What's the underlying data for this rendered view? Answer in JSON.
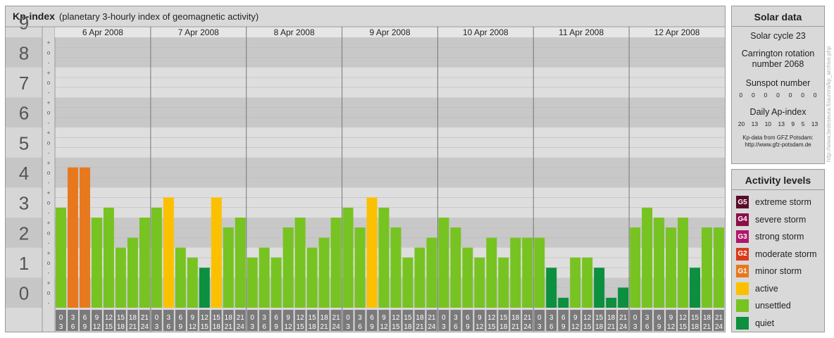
{
  "title": {
    "main": "Kp-index",
    "sub": "(planetary 3-hourly index of geomagnetic activity)"
  },
  "solar": {
    "title": "Solar data",
    "cycle": "Solar cycle 23",
    "carrington": "Carrington rotation number 2068",
    "sunspot_label": "Sunspot number",
    "sunspot": [
      "0",
      "0",
      "0",
      "0",
      "0",
      "0",
      "0"
    ],
    "ap_label": "Daily Ap-index",
    "ap": [
      "20",
      "13",
      "10",
      "13",
      "9",
      "5",
      "13"
    ],
    "source_line1": "Kp-data from GFZ Potsdam:",
    "source_line2": "http://www.gfz-potsdam.de"
  },
  "activity": {
    "title": "Activity levels",
    "items": [
      {
        "code": "G5",
        "label": "extreme storm",
        "color": "#5a0a2a"
      },
      {
        "code": "G4",
        "label": "severe storm",
        "color": "#8a0e4a"
      },
      {
        "code": "G3",
        "label": "strong storm",
        "color": "#b0166a"
      },
      {
        "code": "G2",
        "label": "moderate storm",
        "color": "#d93a1c"
      },
      {
        "code": "G1",
        "label": "minor storm",
        "color": "#e8781e"
      },
      {
        "code": "",
        "label": "active",
        "color": "#fbc100"
      },
      {
        "code": "",
        "label": "unsettled",
        "color": "#77c322"
      },
      {
        "code": "",
        "label": "quiet",
        "color": "#0c8f3e"
      }
    ]
  },
  "watermark": "http://www.tiedeseura.fi/aurora/kp_archive.php",
  "chart_data": {
    "type": "bar",
    "ylim": [
      0,
      9
    ],
    "yticks": [
      "0",
      "1",
      "2",
      "3",
      "4",
      "5",
      "6",
      "7",
      "8",
      "9"
    ],
    "minor_ticks": [
      "-",
      "o",
      "+"
    ],
    "days": [
      "6 Apr 2008",
      "7 Apr 2008",
      "8 Apr 2008",
      "9 Apr 2008",
      "10 Apr 2008",
      "11 Apr 2008",
      "12 Apr 2008"
    ],
    "interval_start": [
      "0",
      "3",
      "6",
      "9",
      "12",
      "15",
      "18",
      "21"
    ],
    "interval_end": [
      "3",
      "6",
      "9",
      "12",
      "15",
      "18",
      "21",
      "24"
    ],
    "values": [
      3.33,
      4.67,
      4.67,
      3.0,
      3.33,
      2.0,
      2.33,
      3.0,
      3.33,
      3.67,
      2.0,
      1.67,
      1.33,
      3.67,
      2.67,
      3.0,
      1.67,
      2.0,
      1.67,
      2.67,
      3.0,
      2.0,
      2.33,
      3.0,
      3.33,
      2.67,
      3.67,
      3.33,
      2.67,
      1.67,
      2.0,
      2.33,
      3.0,
      2.67,
      2.0,
      1.67,
      2.33,
      1.67,
      2.33,
      2.33,
      2.33,
      1.33,
      0.33,
      1.67,
      1.67,
      1.33,
      0.33,
      0.67,
      2.67,
      3.33,
      3.0,
      2.67,
      3.0,
      1.33,
      2.67,
      2.67
    ],
    "colors": [
      "#77c322",
      "#e8781e",
      "#e8781e",
      "#77c322",
      "#77c322",
      "#77c322",
      "#77c322",
      "#77c322",
      "#77c322",
      "#fbc100",
      "#77c322",
      "#77c322",
      "#0c8f3e",
      "#fbc100",
      "#77c322",
      "#77c322",
      "#77c322",
      "#77c322",
      "#77c322",
      "#77c322",
      "#77c322",
      "#77c322",
      "#77c322",
      "#77c322",
      "#77c322",
      "#77c322",
      "#fbc100",
      "#77c322",
      "#77c322",
      "#77c322",
      "#77c322",
      "#77c322",
      "#77c322",
      "#77c322",
      "#77c322",
      "#77c322",
      "#77c322",
      "#77c322",
      "#77c322",
      "#77c322",
      "#77c322",
      "#0c8f3e",
      "#0c8f3e",
      "#77c322",
      "#77c322",
      "#0c8f3e",
      "#0c8f3e",
      "#0c8f3e",
      "#77c322",
      "#77c322",
      "#77c322",
      "#77c322",
      "#77c322",
      "#0c8f3e",
      "#77c322",
      "#77c322"
    ]
  }
}
